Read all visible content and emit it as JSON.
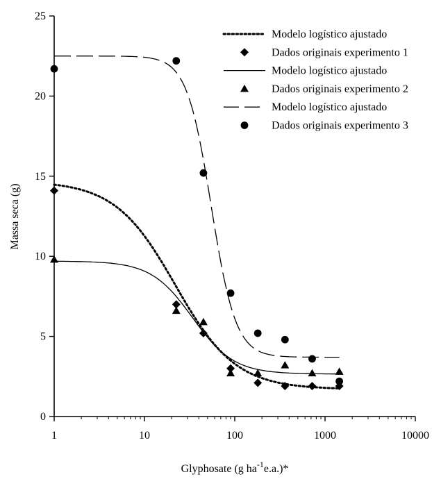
{
  "chart_data": {
    "type": "scatter",
    "xscale": "log",
    "xlim": [
      1,
      10000
    ],
    "ylim": [
      0,
      25
    ],
    "xticks": [
      1,
      10,
      100,
      1000,
      10000
    ],
    "xtick_labels": [
      "1",
      "10",
      "100",
      "1000",
      "10000"
    ],
    "yticks": [
      0,
      5,
      10,
      15,
      20,
      25
    ],
    "ytick_labels": [
      "0",
      "5",
      "10",
      "15",
      "20",
      "25"
    ],
    "ylabel": "Massa seca (g)",
    "xlabel_parts": [
      "Glyphosate (g ha",
      "-1",
      "e.a.)*"
    ],
    "grid": false,
    "legend_position": "top-right",
    "series": [
      {
        "name": "Modelo logístico ajustado",
        "kind": "line",
        "linestyle": "dotted",
        "logistic": {
          "bottom": 1.7,
          "top": 14.7,
          "ed50": 22,
          "slope": 1.3
        },
        "x": [
          1,
          1.5,
          2,
          3,
          5,
          7,
          10,
          15,
          22,
          30,
          45,
          60,
          90,
          130,
          180,
          250,
          360,
          500,
          720,
          1000,
          1440
        ],
        "y": [
          13.9,
          13.5,
          13.1,
          12.5,
          11.6,
          10.9,
          10.2,
          9.1,
          7.9,
          6.9,
          5.3,
          4.4,
          3.3,
          2.6,
          2.2,
          2.0,
          1.9,
          1.8,
          1.8,
          1.75,
          1.75
        ]
      },
      {
        "name": "Dados originais experimento 1",
        "kind": "points",
        "marker": "diamond",
        "x": [
          1,
          22.5,
          45,
          90,
          180,
          360,
          720,
          1440
        ],
        "y": [
          14.1,
          7.0,
          5.2,
          3.0,
          2.1,
          1.9,
          1.9,
          1.9
        ]
      },
      {
        "name": "Modelo logístico ajustado",
        "kind": "line",
        "linestyle": "solid",
        "logistic": {
          "bottom": 2.65,
          "top": 9.7,
          "ed50": 34,
          "slope": 1.9
        },
        "x": [
          1,
          1.5,
          2,
          3,
          5,
          7,
          10,
          15,
          22,
          30,
          45,
          60,
          90,
          130,
          180,
          250,
          360,
          500,
          720,
          1000,
          1440
        ],
        "y": [
          9.7,
          9.7,
          9.7,
          9.7,
          9.6,
          9.6,
          9.4,
          8.9,
          7.9,
          6.8,
          5.4,
          4.6,
          3.7,
          3.2,
          2.95,
          2.8,
          2.75,
          2.7,
          2.7,
          2.65,
          2.65
        ]
      },
      {
        "name": "Dados originais experimento 2",
        "kind": "points",
        "marker": "triangle",
        "x": [
          1,
          22.5,
          45,
          90,
          180,
          360,
          720,
          1440
        ],
        "y": [
          9.8,
          6.6,
          5.9,
          2.7,
          2.7,
          3.2,
          2.7,
          2.8
        ]
      },
      {
        "name": "Modelo logístico ajustado",
        "kind": "line",
        "linestyle": "dashed",
        "logistic": {
          "bottom": 3.7,
          "top": 22.5,
          "ed50": 55,
          "slope": 3.2
        },
        "x": [
          1,
          2,
          5,
          10,
          15,
          20,
          25,
          30,
          35,
          40,
          45,
          50,
          55,
          60,
          70,
          80,
          90,
          100,
          120,
          150,
          200,
          300,
          500,
          1000,
          1440
        ],
        "y": [
          22.5,
          22.5,
          22.5,
          22.5,
          22.4,
          22.2,
          21.8,
          21.1,
          20.1,
          18.8,
          17.3,
          15.6,
          14.0,
          12.5,
          9.9,
          8.0,
          6.8,
          6.0,
          5.0,
          4.4,
          4.0,
          3.8,
          3.7,
          3.7,
          3.7
        ]
      },
      {
        "name": "Dados originais experimento 3",
        "kind": "points",
        "marker": "circle",
        "x": [
          1,
          22.5,
          45,
          90,
          180,
          360,
          720,
          1440
        ],
        "y": [
          21.7,
          22.2,
          15.2,
          7.7,
          5.2,
          4.8,
          3.6,
          2.2
        ]
      }
    ]
  }
}
